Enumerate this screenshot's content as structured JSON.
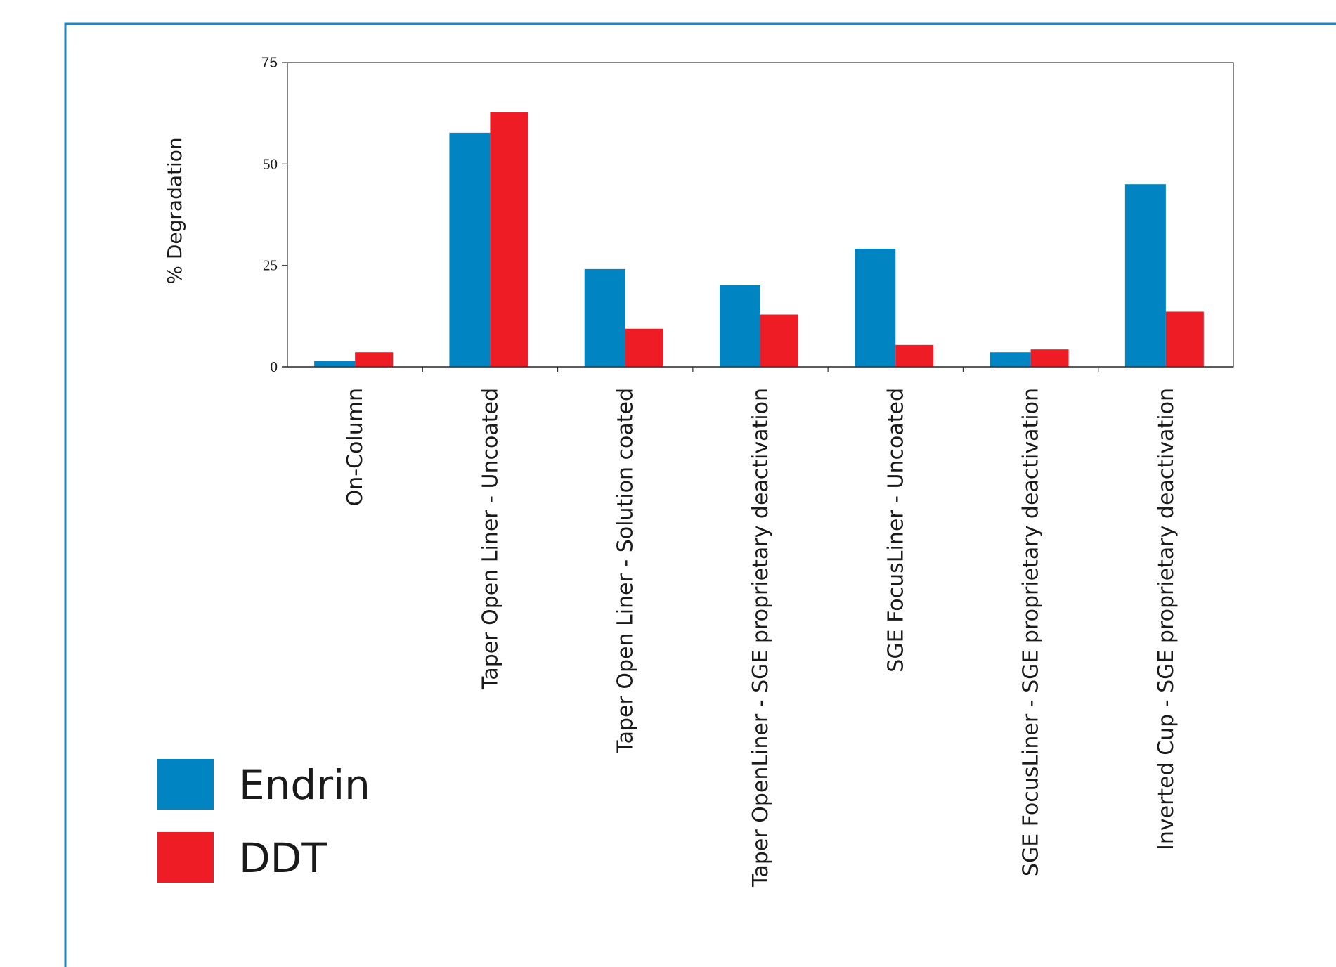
{
  "chart_data": {
    "type": "bar",
    "title": "",
    "xlabel": "",
    "ylabel": "% Degradation",
    "ylim": [
      0,
      75
    ],
    "yticks": [
      "0",
      "25",
      "50",
      "75"
    ],
    "grid": false,
    "legend_position": "bottom-left",
    "categories": [
      "On-Column",
      "Taper Open Liner - Uncoated",
      "Taper Open Liner - Solution coated",
      "Taper OpenLiner - SGE proprietary deactivation",
      "SGE FocusLiner - Uncoated",
      "SGE FocusLiner - SGE proprietary deactivation",
      "Inverted Cup - SGE proprietary deactivation"
    ],
    "series": [
      {
        "name": "Endrin",
        "color": "#0084c2",
        "values": [
          1.5,
          57.7,
          24.1,
          20.1,
          29.1,
          3.6,
          45.0
        ]
      },
      {
        "name": "DDT",
        "color": "#ee1d25",
        "values": [
          3.6,
          62.7,
          9.4,
          12.9,
          5.4,
          4.3,
          13.6
        ]
      }
    ]
  },
  "colors": {
    "frame": "#1e86c8",
    "axis": "#333333"
  }
}
